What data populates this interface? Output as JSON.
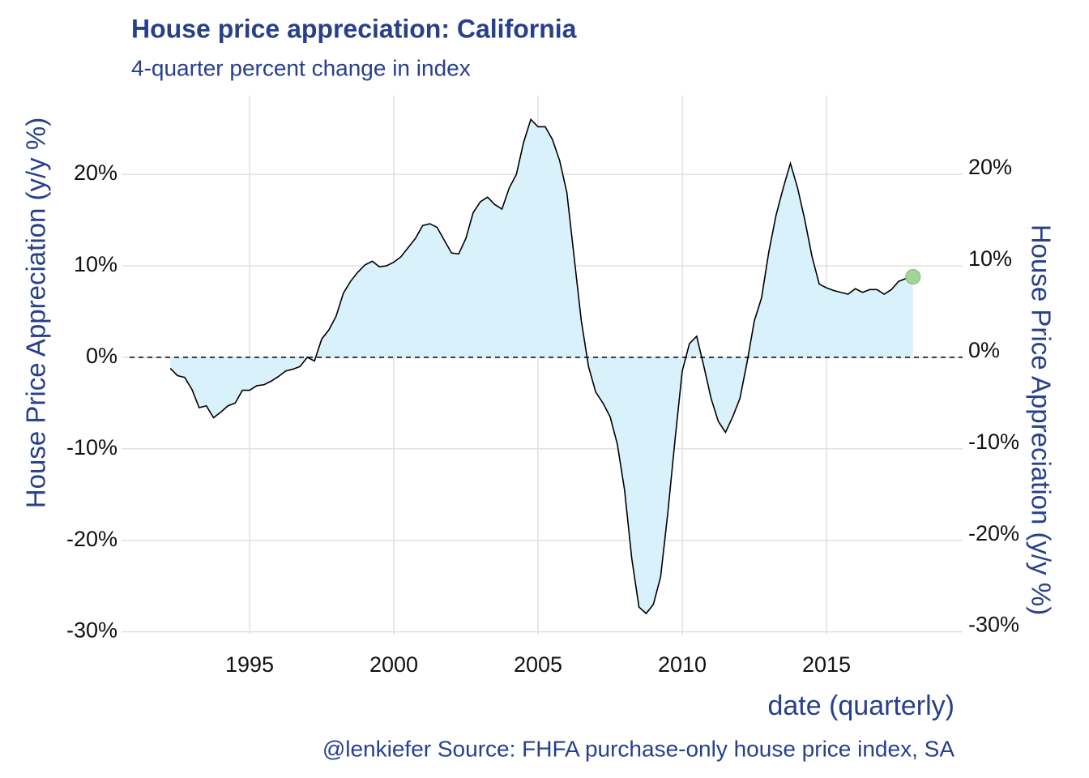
{
  "chart_data": {
    "type": "area",
    "title": "House price appreciation: California",
    "subtitle": "4-quarter percent change in index",
    "ylabel": "House Price Appreciation (y/y %)",
    "y2label": "House Price Appreciation (y/y %)",
    "xlabel": "date (quarterly)",
    "caption": "@lenkiefer Source: FHFA purchase-only house price index, SA",
    "x": [
      1992.25,
      1992.5,
      1992.75,
      1993,
      1993.25,
      1993.5,
      1993.75,
      1994,
      1994.25,
      1994.5,
      1994.75,
      1995,
      1995.25,
      1995.5,
      1995.75,
      1996,
      1996.25,
      1996.5,
      1996.75,
      1997,
      1997.25,
      1997.5,
      1997.75,
      1998,
      1998.25,
      1998.5,
      1998.75,
      1999,
      1999.25,
      1999.5,
      1999.75,
      2000,
      2000.25,
      2000.5,
      2000.75,
      2001,
      2001.25,
      2001.5,
      2001.75,
      2002,
      2002.25,
      2002.5,
      2002.75,
      2003,
      2003.25,
      2003.5,
      2003.75,
      2004,
      2004.25,
      2004.5,
      2004.75,
      2005,
      2005.25,
      2005.5,
      2005.75,
      2006,
      2006.25,
      2006.5,
      2006.75,
      2007,
      2007.25,
      2007.5,
      2007.75,
      2008,
      2008.25,
      2008.5,
      2008.75,
      2009,
      2009.25,
      2009.5,
      2009.75,
      2010,
      2010.25,
      2010.5,
      2010.75,
      2011,
      2011.25,
      2011.5,
      2011.75,
      2012,
      2012.25,
      2012.5,
      2012.75,
      2013,
      2013.25,
      2013.5,
      2013.75,
      2014,
      2014.25,
      2014.5,
      2014.75,
      2015,
      2015.25,
      2015.5,
      2015.75,
      2016,
      2016.25,
      2016.5,
      2016.75,
      2017,
      2017.25,
      2017.5,
      2017.75,
      2018
    ],
    "series": [
      {
        "name": "California",
        "color": "#000000",
        "fill_color": "#d9f1fb",
        "point_color": "#a3d596",
        "values": [
          -1.2,
          -2.0,
          -2.2,
          -3.5,
          -5.5,
          -5.3,
          -6.6,
          -6.0,
          -5.3,
          -5.0,
          -3.6,
          -3.6,
          -3.1,
          -3.0,
          -2.6,
          -2.1,
          -1.5,
          -1.3,
          -1.0,
          0.0,
          -0.4,
          2.0,
          3.0,
          4.5,
          7.0,
          8.3,
          9.3,
          10.1,
          10.5,
          9.9,
          10.0,
          10.4,
          11.0,
          12.0,
          13.0,
          14.4,
          14.6,
          14.2,
          12.8,
          11.4,
          11.3,
          13.0,
          15.8,
          17.0,
          17.5,
          16.7,
          16.2,
          18.5,
          20.0,
          23.5,
          26.0,
          25.2,
          25.2,
          23.8,
          21.5,
          18.0,
          11.0,
          4.0,
          -1.0,
          -3.8,
          -5.0,
          -6.5,
          -9.5,
          -14.5,
          -22.0,
          -27.3,
          -28.0,
          -27.0,
          -24.0,
          -17.0,
          -9.0,
          -1.5,
          1.5,
          2.3,
          -1.0,
          -4.5,
          -7.0,
          -8.2,
          -6.5,
          -4.5,
          -0.5,
          4.0,
          6.5,
          11.5,
          15.5,
          18.5,
          21.2,
          18.5,
          15.0,
          11.0,
          8.0,
          7.6,
          7.3,
          7.1,
          6.9,
          7.5,
          7.1,
          7.4,
          7.4,
          6.9,
          7.4,
          8.3,
          8.6,
          8.8
        ]
      }
    ],
    "xlim": [
      1990.56,
      2019.72
    ],
    "ylim": [
      -30.3,
      28.6
    ],
    "y2lim": [
      -30.3,
      28.6
    ],
    "xticks": [
      1995,
      2000,
      2005,
      2010,
      2015
    ],
    "yticks": [
      {
        "value": -30,
        "label": "-30%"
      },
      {
        "value": -20,
        "label": "-20%"
      },
      {
        "value": -10,
        "label": "-10%"
      },
      {
        "value": 0,
        "label": "0%"
      },
      {
        "value": 10,
        "label": "10%"
      },
      {
        "value": 20,
        "label": "20%"
      }
    ],
    "y2ticks": [
      {
        "value": -30,
        "label": "-30%"
      },
      {
        "value": -20,
        "label": "-20%"
      },
      {
        "value": -10,
        "label": "-10%"
      },
      {
        "value": 0,
        "label": "0%"
      },
      {
        "value": 10,
        "label": "10%"
      },
      {
        "value": 20,
        "label": "20%"
      }
    ],
    "grid": true
  }
}
